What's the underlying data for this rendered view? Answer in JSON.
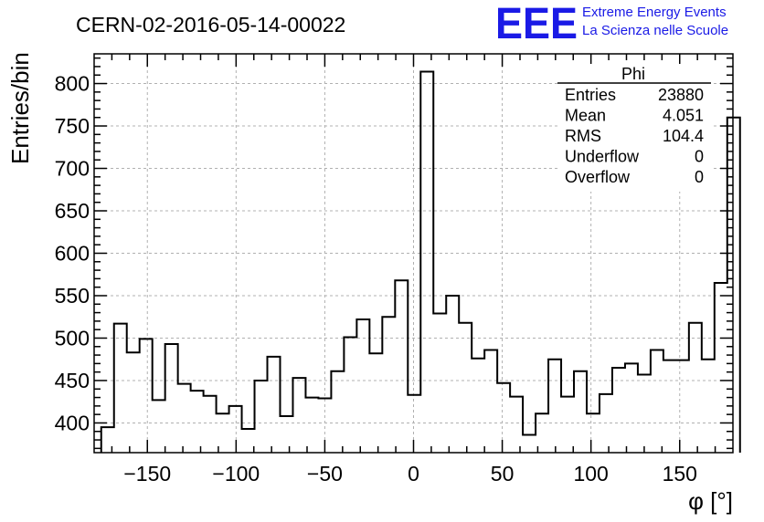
{
  "header": {
    "title": "CERN-02-2016-05-14-00022",
    "logo_text": "EEE",
    "logo_line1": "Extreme Energy Events",
    "logo_line2": "La Scienza nelle Scuole",
    "logo_color": "#1a1ae6"
  },
  "stats": {
    "name": "Phi",
    "rows": [
      {
        "label": "Entries",
        "value": "23880"
      },
      {
        "label": "Mean",
        "value": "4.051"
      },
      {
        "label": "RMS",
        "value": "104.4"
      },
      {
        "label": "Underflow",
        "value": "0"
      },
      {
        "label": "Overflow",
        "value": "0"
      }
    ]
  },
  "chart_data": {
    "type": "histogram",
    "title": "CERN-02-2016-05-14-00022",
    "xlabel": "φ [°]",
    "ylabel": "Entries/bin",
    "xlim": [
      -180,
      180
    ],
    "ylim": [
      365,
      835
    ],
    "grid": true,
    "bin_edges_start": -176,
    "bin_width": 7.2,
    "x_ticks": [
      -150,
      -100,
      -50,
      0,
      50,
      100,
      150
    ],
    "x_tick_labels": [
      "−150",
      "−100",
      "−50",
      "0",
      "50",
      "100",
      "150"
    ],
    "y_ticks": [
      400,
      450,
      500,
      550,
      600,
      650,
      700,
      750,
      800
    ],
    "y_tick_labels": [
      "400",
      "450",
      "500",
      "550",
      "600",
      "650",
      "700",
      "750",
      "800"
    ],
    "values": [
      395,
      517,
      483,
      499,
      427,
      493,
      446,
      438,
      432,
      411,
      420,
      393,
      450,
      478,
      408,
      453,
      430,
      429,
      461,
      501,
      522,
      482,
      525,
      568,
      433,
      814,
      529,
      550,
      518,
      476,
      486,
      447,
      431,
      386,
      411,
      475,
      431,
      461,
      411,
      434,
      465,
      470,
      457,
      486,
      474,
      474,
      518,
      475,
      565,
      760
    ]
  }
}
